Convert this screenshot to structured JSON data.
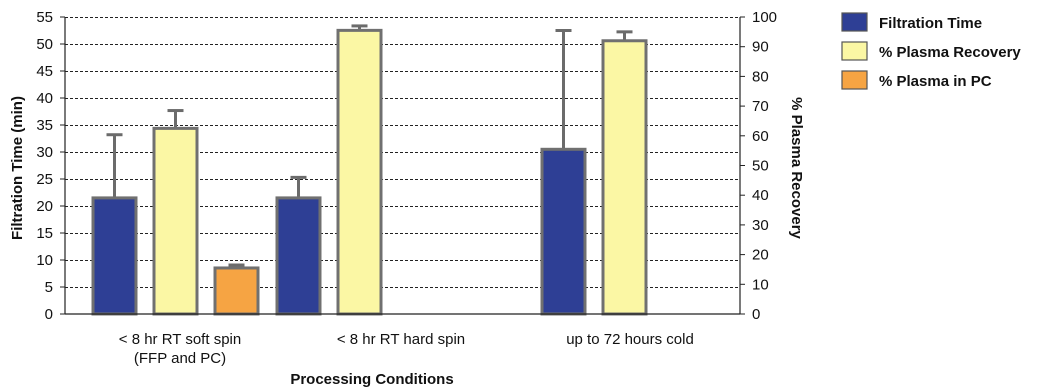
{
  "chart_data": {
    "type": "bar",
    "categories": [
      [
        "< 8 hr RT soft spin",
        "(FFP and PC)"
      ],
      [
        "< 8 hr RT hard spin"
      ],
      [
        "up to 72 hours cold"
      ]
    ],
    "xlabel": "Processing Conditions",
    "ylabel": "Filtration Time (min)",
    "y2label": "% Plasma Recovery",
    "ylim": [
      0,
      55
    ],
    "y2lim": [
      0,
      100
    ],
    "yticks": [
      0,
      5,
      10,
      15,
      20,
      25,
      30,
      35,
      40,
      45,
      50,
      55
    ],
    "y2ticks": [
      0,
      10,
      20,
      30,
      40,
      50,
      60,
      70,
      80,
      90,
      100
    ],
    "grid": true,
    "legend_position": "top-right",
    "series": [
      {
        "name": "Filtration Time",
        "axis": "left",
        "color": "#2e3f95",
        "values": [
          21.5,
          21.5,
          30.5
        ],
        "error_upper": [
          33.2,
          25.3,
          52.5
        ]
      },
      {
        "name": "% Plasma Recovery",
        "axis": "right",
        "color": "#fbf7a4",
        "values": [
          62.5,
          95.5,
          92
        ],
        "error_upper": [
          68.5,
          97,
          95
        ]
      },
      {
        "name": "% Plasma in PC",
        "axis": "right",
        "color": "#f6a443",
        "values": [
          15.5,
          null,
          null
        ],
        "error_upper": [
          16.5,
          null,
          null
        ]
      }
    ]
  }
}
